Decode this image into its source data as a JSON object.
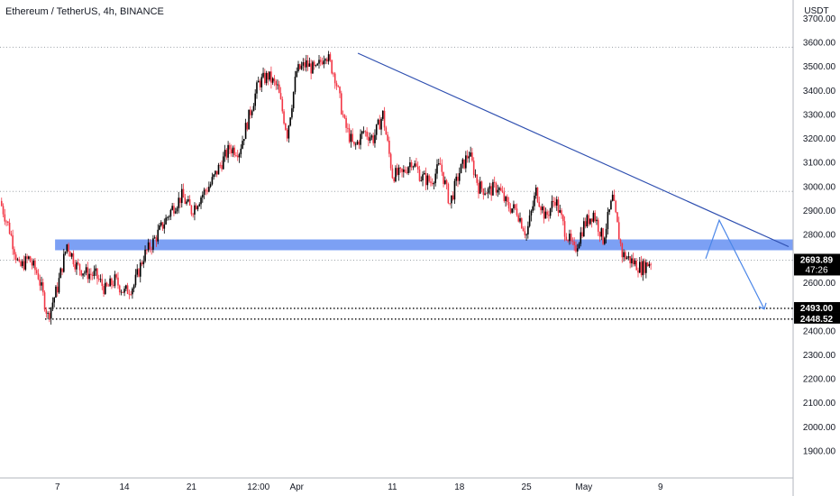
{
  "chart_data": {
    "type": "candlestick",
    "title": "Ethereum / TetherUS, 4h, BINANCE",
    "y_unit": "USDT",
    "ylim": [
      1800,
      3750
    ],
    "y_ticks": [
      1900,
      2000,
      2100,
      2200,
      2300,
      2400,
      2500,
      2600,
      2700,
      2800,
      2900,
      3000,
      3100,
      3200,
      3300,
      3400,
      3500,
      3600,
      3700
    ],
    "y_tick_labels": [
      "1900.00",
      "2000.00",
      "2100.00",
      "2200.00",
      "2300.00",
      "2400.00",
      "2500.00",
      "2600.00",
      "2700.00",
      "2800.00",
      "2900.00",
      "3000.00",
      "3100.00",
      "3200.00",
      "3300.00",
      "3400.00",
      "3500.00",
      "3600.00",
      "3700.00"
    ],
    "x_day_range": [
      0,
      102
    ],
    "x_ticks": [
      {
        "day": 6,
        "label": "7"
      },
      {
        "day": 13,
        "label": "14"
      },
      {
        "day": 20,
        "label": "21"
      },
      {
        "day": 27,
        "label": "12:00"
      },
      {
        "day": 31,
        "label": "Apr"
      },
      {
        "day": 41,
        "label": "11"
      },
      {
        "day": 48,
        "label": "18"
      },
      {
        "day": 55,
        "label": "25"
      },
      {
        "day": 61,
        "label": "May"
      },
      {
        "day": 69,
        "label": "9"
      }
    ],
    "price_path": [
      [
        0,
        2940
      ],
      [
        1,
        2820
      ],
      [
        2,
        2660
      ],
      [
        3,
        2700
      ],
      [
        4,
        2630
      ],
      [
        5,
        2460
      ],
      [
        6,
        2580
      ],
      [
        7,
        2760
      ],
      [
        8,
        2670
      ],
      [
        9,
        2640
      ],
      [
        10,
        2630
      ],
      [
        11,
        2570
      ],
      [
        12,
        2610
      ],
      [
        13,
        2560
      ],
      [
        14,
        2590
      ],
      [
        15,
        2710
      ],
      [
        16,
        2770
      ],
      [
        17,
        2840
      ],
      [
        18,
        2910
      ],
      [
        19,
        2960
      ],
      [
        20,
        2900
      ],
      [
        21,
        2960
      ],
      [
        22,
        3010
      ],
      [
        23,
        3090
      ],
      [
        24,
        3160
      ],
      [
        25,
        3150
      ],
      [
        26,
        3290
      ],
      [
        27,
        3430
      ],
      [
        28,
        3460
      ],
      [
        29,
        3410
      ],
      [
        30,
        3220
      ],
      [
        31,
        3480
      ],
      [
        32,
        3510
      ],
      [
        33,
        3480
      ],
      [
        34,
        3560
      ],
      [
        35,
        3460
      ],
      [
        36,
        3260
      ],
      [
        37,
        3160
      ],
      [
        38,
        3230
      ],
      [
        39,
        3200
      ],
      [
        40,
        3300
      ],
      [
        41,
        3050
      ],
      [
        42,
        3050
      ],
      [
        43,
        3110
      ],
      [
        44,
        3040
      ],
      [
        45,
        3020
      ],
      [
        46,
        3090
      ],
      [
        47,
        2930
      ],
      [
        48,
        3060
      ],
      [
        49,
        3140
      ],
      [
        50,
        3000
      ],
      [
        51,
        2980
      ],
      [
        52,
        3000
      ],
      [
        53,
        2920
      ],
      [
        54,
        2900
      ],
      [
        55,
        2800
      ],
      [
        56,
        2980
      ],
      [
        57,
        2870
      ],
      [
        58,
        2950
      ],
      [
        59,
        2820
      ],
      [
        60,
        2730
      ],
      [
        61,
        2840
      ],
      [
        62,
        2890
      ],
      [
        63,
        2780
      ],
      [
        64,
        2950
      ],
      [
        65,
        2720
      ],
      [
        66,
        2690
      ],
      [
        67,
        2660
      ],
      [
        68,
        2690
      ]
    ],
    "support_zone": {
      "low": 2735,
      "high": 2780,
      "from_day": 5
    },
    "trendline": {
      "from": [
        34,
        3555
      ],
      "to": [
        76,
        2750
      ]
    },
    "projection_path": [
      [
        68,
        2700
      ],
      [
        70,
        2860
      ],
      [
        74,
        2490
      ]
    ],
    "horizontal_levels": [
      {
        "price": 3580,
        "style": "dotted-light"
      },
      {
        "price": 2980,
        "style": "dotted-light"
      },
      {
        "price": 2693.89,
        "style": "dotted-light"
      },
      {
        "price": 2493.0,
        "style": "dotted-dark"
      },
      {
        "price": 2448.52,
        "style": "dotted-dark"
      }
    ],
    "price_tags": [
      {
        "price": 2693.89,
        "label": "2693.89",
        "sublabel": "47:26",
        "color": "#000000"
      },
      {
        "price": 2493.0,
        "label": "2493.00",
        "color": "#000000"
      },
      {
        "price": 2448.52,
        "label": "2448.52",
        "color": "#000000"
      }
    ],
    "colors": {
      "up": "#000000",
      "down": "#f23645",
      "zone": "#4a7cf0",
      "trendline": "#2e4fb0",
      "projection": "#4a86e8",
      "grid_dots": "#9aa0a6",
      "axis_text": "#131722"
    }
  }
}
